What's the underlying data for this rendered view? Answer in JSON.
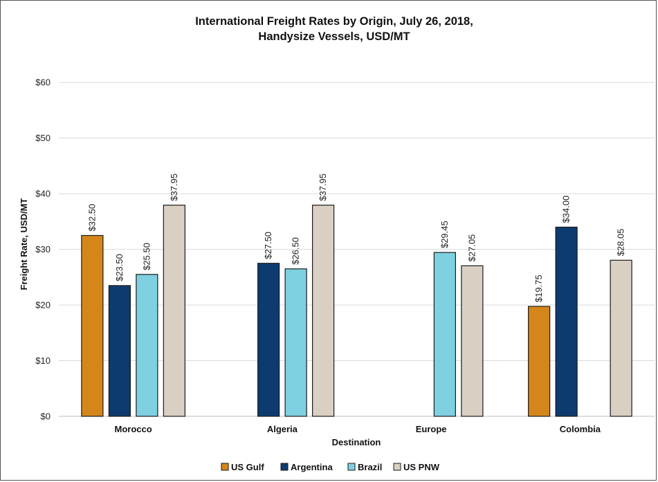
{
  "chart_data": {
    "type": "bar",
    "title": [
      "International Freight Rates by Origin, July 26, 2018,",
      "Handysize Vessels, USD/MT"
    ],
    "xlabel": "Destination",
    "ylabel": "Freight Rate, USD/MT",
    "categories": [
      "Morocco",
      "Algeria",
      "Europe",
      "Colombia"
    ],
    "ylim": [
      0,
      65
    ],
    "yticks": [
      0,
      10,
      20,
      30,
      40,
      50,
      60
    ],
    "ytick_labels": [
      "$0",
      "$10",
      "$20",
      "$30",
      "$40",
      "$50",
      "$60"
    ],
    "grid": true,
    "legend_position": "bottom",
    "series": [
      {
        "name": "US Gulf",
        "color": "#d4861a",
        "values": [
          32.5,
          null,
          null,
          19.75
        ],
        "labels": [
          "$32.50",
          "",
          "",
          "$19.75"
        ]
      },
      {
        "name": "Argentina",
        "color": "#0d3b70",
        "values": [
          23.5,
          27.5,
          null,
          34.0
        ],
        "labels": [
          "$23.50",
          "$27.50",
          "",
          "$34.00"
        ]
      },
      {
        "name": "Brazil",
        "color": "#7fd0e0",
        "values": [
          25.5,
          26.5,
          29.45,
          null
        ],
        "labels": [
          "$25.50",
          "$26.50",
          "$29.45",
          ""
        ]
      },
      {
        "name": "US PNW",
        "color": "#d9d0c3",
        "values": [
          37.95,
          37.95,
          27.05,
          28.05
        ],
        "labels": [
          "$37.95",
          "$37.95",
          "$27.05",
          "$28.05"
        ]
      }
    ]
  }
}
